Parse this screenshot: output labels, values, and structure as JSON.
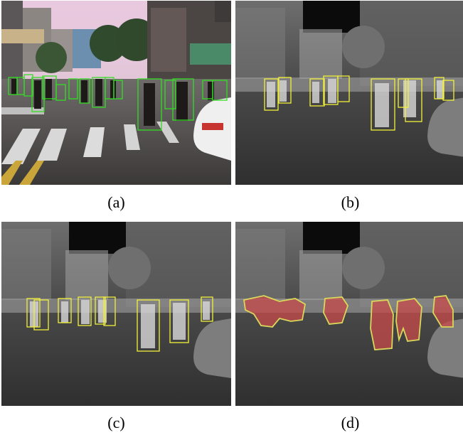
{
  "panels": [
    {
      "id": "a",
      "caption": "(a)",
      "kind": "rgb",
      "box_color": "#33dd22"
    },
    {
      "id": "b",
      "caption": "(b)",
      "kind": "thermal",
      "box_color": "#f2f23a"
    },
    {
      "id": "c",
      "caption": "(c)",
      "kind": "thermal",
      "box_color": "#f2f23a"
    },
    {
      "id": "d",
      "caption": "(d)",
      "kind": "thermal-mask",
      "mask_color": "#c84a4a",
      "mask_outline": "#d8d85a"
    }
  ]
}
